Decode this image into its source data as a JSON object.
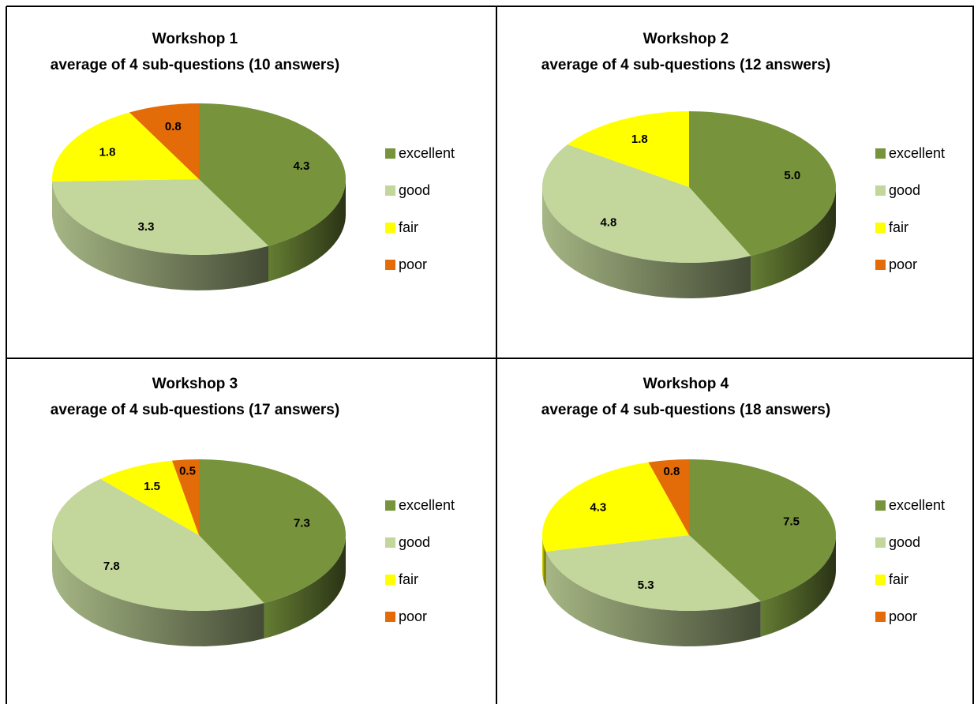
{
  "colors": {
    "excellent": "#77933c",
    "good": "#c3d69b",
    "fair": "#ffff00",
    "poor": "#e36c09"
  },
  "legend": [
    "excellent",
    "good",
    "fair",
    "poor"
  ],
  "chart_data": [
    {
      "type": "pie",
      "title": "Workshop 1",
      "subtitle": "average of 4 sub-questions (10 answers)",
      "categories": [
        "excellent",
        "good",
        "fair",
        "poor"
      ],
      "values": [
        4.3,
        3.3,
        1.8,
        0.8
      ],
      "labels": [
        "4.3",
        "3.3",
        "1.8",
        "0.8"
      ],
      "legend_position": "right"
    },
    {
      "type": "pie",
      "title": "Workshop 2",
      "subtitle": "average of 4 sub-questions (12 answers)",
      "categories": [
        "excellent",
        "good",
        "fair",
        "poor"
      ],
      "values": [
        5.0,
        4.8,
        1.8,
        0
      ],
      "labels": [
        "5.0",
        "4.8",
        "1.8",
        ""
      ],
      "legend_position": "right"
    },
    {
      "type": "pie",
      "title": "Workshop 3",
      "subtitle": "average of 4 sub-questions (17 answers)",
      "categories": [
        "excellent",
        "good",
        "fair",
        "poor"
      ],
      "values": [
        7.3,
        7.8,
        1.5,
        0.5
      ],
      "labels": [
        "7.3",
        "7.8",
        "1.5",
        "0.5"
      ],
      "legend_position": "right"
    },
    {
      "type": "pie",
      "title": "Workshop 4",
      "subtitle": "average of 4 sub-questions (18 answers)",
      "categories": [
        "excellent",
        "good",
        "fair",
        "poor"
      ],
      "values": [
        7.5,
        5.3,
        4.3,
        0.8
      ],
      "labels": [
        "7.5",
        "5.3",
        "4.3",
        "0.8"
      ],
      "legend_position": "right"
    }
  ]
}
